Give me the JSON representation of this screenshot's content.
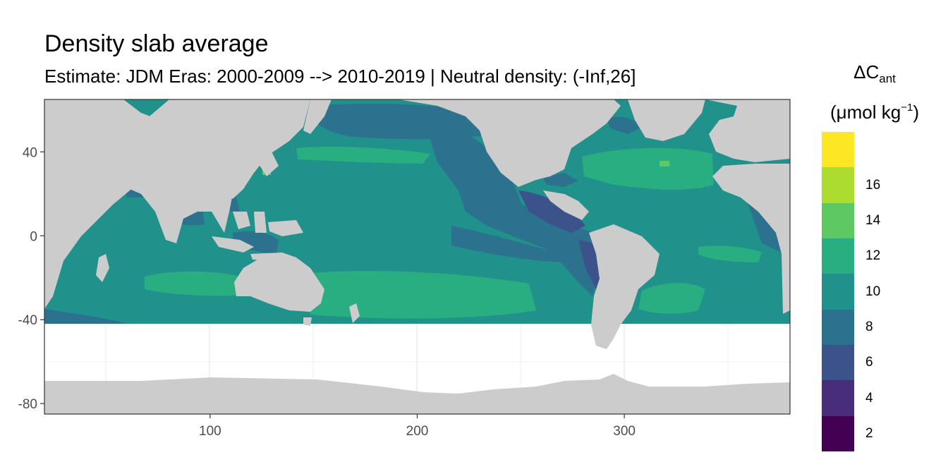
{
  "title": "Density slab average",
  "subtitle": "Estimate: JDM Eras: 2000-2009 --> 2010-2019 | Neutral density: (-Inf,26]",
  "map": {
    "x_axis": {
      "ticks": [
        100,
        200,
        300
      ],
      "range": [
        20,
        380
      ]
    },
    "y_axis": {
      "ticks": [
        40,
        0,
        -40,
        -80
      ],
      "range": [
        -85,
        65
      ]
    },
    "land_color": "#cccccc",
    "no_data_color": "#ffffff",
    "grid": true,
    "data_coverage_lat": [
      -41,
      65
    ]
  },
  "legend": {
    "title_main": "ΔC",
    "title_sub": "ant",
    "unit_prefix": "(μmol kg",
    "unit_exp": "−1",
    "unit_suffix": ")",
    "bins": [
      {
        "label": "",
        "color": "#fde725"
      },
      {
        "label": "16",
        "color": "#addc30"
      },
      {
        "label": "14",
        "color": "#5ec962"
      },
      {
        "label": "12",
        "color": "#28ae80"
      },
      {
        "label": "10",
        "color": "#21918c"
      },
      {
        "label": "8",
        "color": "#2c728e"
      },
      {
        "label": "6",
        "color": "#3b528b"
      },
      {
        "label": "4",
        "color": "#472d7b"
      },
      {
        "label": "2",
        "color": "#440154"
      }
    ]
  }
}
